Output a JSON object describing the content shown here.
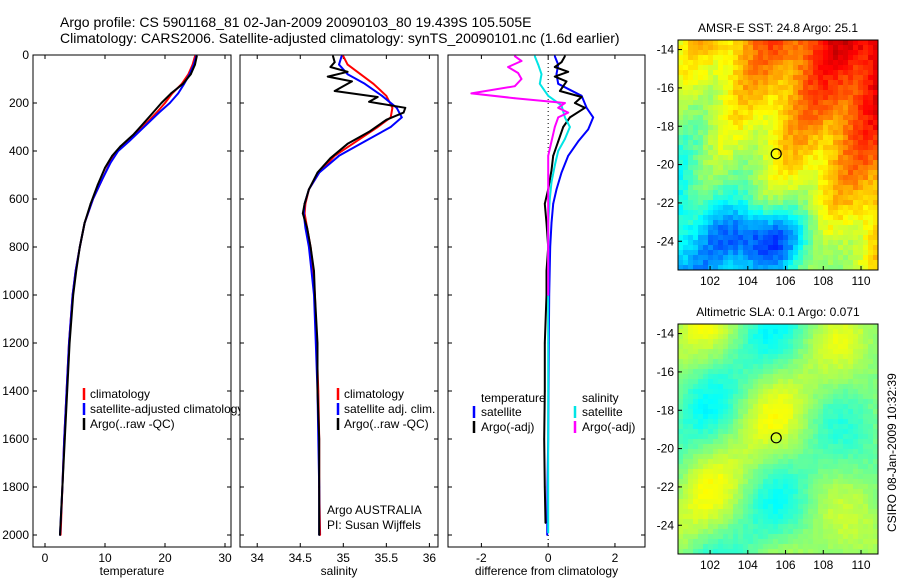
{
  "header": {
    "title_line1": "Argo profile: CS 5901168_81 02-Jan-2009 20090103_80 19.439S 105.505E",
    "title_line2": "Climatology: CARS2006. Satellite-adjusted climatology: synTS_20090101.nc (1.6d earlier)"
  },
  "side_stamp": "CSIRO 08-Jan-2009 10:32:39",
  "chart_data": [
    {
      "type": "line",
      "xlabel": "temperature",
      "xticks": [
        0,
        10,
        20,
        30
      ],
      "xlim": [
        -2,
        31
      ],
      "ylim": [
        2050,
        0
      ],
      "yticks": [
        0,
        200,
        400,
        600,
        800,
        1000,
        1200,
        1400,
        1600,
        1800,
        2000
      ],
      "legend": [
        "climatology",
        "satellite-adjusted climatology",
        "Argo(..raw -QC)"
      ],
      "annotations": [],
      "series": [
        {
          "name": "climatology",
          "color": "#ff0000",
          "points": [
            [
              25.0,
              5
            ],
            [
              24.6,
              40
            ],
            [
              23.9,
              80
            ],
            [
              22.8,
              120
            ],
            [
              21.2,
              160
            ],
            [
              20.0,
              200
            ],
            [
              18.6,
              240
            ],
            [
              16.3,
              300
            ],
            [
              13.8,
              360
            ],
            [
              12.0,
              400
            ],
            [
              10.8,
              450
            ],
            [
              9.5,
              520
            ],
            [
              8.0,
              600
            ],
            [
              6.6,
              700
            ],
            [
              5.8,
              800
            ],
            [
              5.1,
              900
            ],
            [
              4.6,
              1000
            ],
            [
              4.0,
              1200
            ],
            [
              3.6,
              1400
            ],
            [
              3.2,
              1600
            ],
            [
              2.9,
              1800
            ],
            [
              2.6,
              2000
            ]
          ]
        },
        {
          "name": "satellite-adjusted climatology",
          "color": "#0000ff",
          "points": [
            [
              25.2,
              5
            ],
            [
              24.8,
              40
            ],
            [
              24.1,
              80
            ],
            [
              23.2,
              120
            ],
            [
              22.2,
              160
            ],
            [
              20.8,
              200
            ],
            [
              19.0,
              240
            ],
            [
              16.5,
              300
            ],
            [
              14.0,
              360
            ],
            [
              12.2,
              400
            ],
            [
              10.9,
              450
            ],
            [
              9.5,
              520
            ],
            [
              8.0,
              600
            ],
            [
              6.6,
              700
            ],
            [
              5.8,
              800
            ],
            [
              5.1,
              900
            ],
            [
              4.6,
              1000
            ],
            [
              4.0,
              1200
            ],
            [
              3.6,
              1400
            ],
            [
              3.2,
              1600
            ],
            [
              2.9,
              1800
            ],
            [
              2.5,
              2000
            ]
          ]
        },
        {
          "name": "Argo(..raw -QC)",
          "color": "#000000",
          "points": [
            [
              25.3,
              5
            ],
            [
              25.0,
              40
            ],
            [
              24.3,
              80
            ],
            [
              23.0,
              120
            ],
            [
              21.0,
              160
            ],
            [
              19.4,
              200
            ],
            [
              18.0,
              240
            ],
            [
              16.6,
              280
            ],
            [
              14.8,
              330
            ],
            [
              12.6,
              380
            ],
            [
              11.2,
              420
            ],
            [
              10.0,
              470
            ],
            [
              8.8,
              540
            ],
            [
              7.6,
              620
            ],
            [
              6.6,
              700
            ],
            [
              5.8,
              800
            ],
            [
              5.2,
              900
            ],
            [
              4.7,
              1000
            ],
            [
              4.1,
              1200
            ],
            [
              3.7,
              1400
            ],
            [
              3.3,
              1600
            ],
            [
              2.9,
              1800
            ],
            [
              2.5,
              2000
            ]
          ]
        }
      ]
    },
    {
      "type": "line",
      "xlabel": "salinity",
      "xticks": [
        34,
        34.5,
        35,
        35.5,
        36
      ],
      "xlim": [
        33.8,
        36.1
      ],
      "ylim": [
        2050,
        0
      ],
      "yticks": [
        0,
        200,
        400,
        600,
        800,
        1000,
        1200,
        1400,
        1600,
        1800,
        2000
      ],
      "legend": [
        "climatology",
        "satellite adj. clim.",
        "Argo(..raw -QC)"
      ],
      "annotations": [
        "Argo AUSTRALIA",
        "PI: Susan Wijffels"
      ],
      "series": [
        {
          "name": "climatology",
          "color": "#ff0000",
          "points": [
            [
              35.0,
              5
            ],
            [
              35.05,
              40
            ],
            [
              35.2,
              80
            ],
            [
              35.35,
              120
            ],
            [
              35.5,
              170
            ],
            [
              35.57,
              220
            ],
            [
              35.55,
              260
            ],
            [
              35.4,
              300
            ],
            [
              35.15,
              360
            ],
            [
              34.9,
              420
            ],
            [
              34.72,
              490
            ],
            [
              34.6,
              560
            ],
            [
              34.56,
              620
            ],
            [
              34.55,
              660
            ],
            [
              34.58,
              720
            ],
            [
              34.62,
              800
            ],
            [
              34.65,
              900
            ],
            [
              34.67,
              1000
            ],
            [
              34.69,
              1200
            ],
            [
              34.71,
              1400
            ],
            [
              34.72,
              1600
            ],
            [
              34.72,
              1800
            ],
            [
              34.73,
              2000
            ]
          ]
        },
        {
          "name": "satellite adj. clim.",
          "color": "#0000ff",
          "points": [
            [
              34.98,
              5
            ],
            [
              34.95,
              40
            ],
            [
              35.05,
              80
            ],
            [
              35.25,
              120
            ],
            [
              35.45,
              170
            ],
            [
              35.62,
              220
            ],
            [
              35.68,
              260
            ],
            [
              35.55,
              300
            ],
            [
              35.25,
              360
            ],
            [
              34.95,
              420
            ],
            [
              34.72,
              490
            ],
            [
              34.6,
              560
            ],
            [
              34.55,
              620
            ],
            [
              34.54,
              660
            ],
            [
              34.56,
              720
            ],
            [
              34.6,
              800
            ],
            [
              34.63,
              900
            ],
            [
              34.66,
              1000
            ],
            [
              34.68,
              1200
            ],
            [
              34.7,
              1400
            ],
            [
              34.71,
              1600
            ],
            [
              34.72,
              1800
            ],
            [
              34.72,
              2000
            ]
          ]
        },
        {
          "name": "Argo(..raw -QC)",
          "color": "#000000",
          "points": [
            [
              34.88,
              5
            ],
            [
              34.9,
              30
            ],
            [
              34.85,
              50
            ],
            [
              35.05,
              70
            ],
            [
              34.82,
              90
            ],
            [
              35.1,
              110
            ],
            [
              34.9,
              150
            ],
            [
              35.4,
              175
            ],
            [
              35.3,
              195
            ],
            [
              35.72,
              220
            ],
            [
              35.7,
              240
            ],
            [
              35.5,
              270
            ],
            [
              35.3,
              320
            ],
            [
              35.05,
              370
            ],
            [
              34.85,
              430
            ],
            [
              34.7,
              490
            ],
            [
              34.6,
              560
            ],
            [
              34.55,
              620
            ],
            [
              34.53,
              660
            ],
            [
              34.58,
              720
            ],
            [
              34.62,
              800
            ],
            [
              34.66,
              900
            ],
            [
              34.67,
              1000
            ],
            [
              34.7,
              1200
            ],
            [
              34.7,
              1400
            ],
            [
              34.72,
              1600
            ],
            [
              34.72,
              1800
            ],
            [
              34.72,
              2000
            ]
          ]
        }
      ]
    },
    {
      "type": "line",
      "xlabel": "difference from climatology",
      "xticks": [
        -2,
        0,
        2
      ],
      "xlim": [
        -3.0,
        2.9
      ],
      "ylim": [
        2050,
        0
      ],
      "yticks": [
        0,
        200,
        400,
        600,
        800,
        1000,
        1200,
        1400,
        1600,
        1800,
        2000
      ],
      "legend": [
        "temperature",
        "satellite",
        "Argo(-adj)",
        "salinity",
        "satellite",
        "Argo(-adj)"
      ],
      "annotations": [],
      "series": [
        {
          "name": "satellite",
          "color": "#0000ff",
          "points": [
            [
              0.2,
              5
            ],
            [
              0.3,
              40
            ],
            [
              0.25,
              80
            ],
            [
              0.3,
              120
            ],
            [
              1.0,
              170
            ],
            [
              1.15,
              220
            ],
            [
              1.35,
              260
            ],
            [
              1.2,
              310
            ],
            [
              0.9,
              360
            ],
            [
              0.6,
              420
            ],
            [
              0.4,
              490
            ],
            [
              0.25,
              560
            ],
            [
              0.15,
              620
            ],
            [
              0.1,
              700
            ],
            [
              0.06,
              800
            ],
            [
              0.03,
              1000
            ],
            [
              0.02,
              1200
            ],
            [
              0.01,
              1400
            ],
            [
              0.0,
              1600
            ],
            [
              -0.02,
              1800
            ],
            [
              -0.03,
              2000
            ]
          ]
        },
        {
          "name": "Argo(-adj)",
          "color": "#000000",
          "points": [
            [
              0.5,
              5
            ],
            [
              0.4,
              30
            ],
            [
              0.2,
              50
            ],
            [
              0.6,
              70
            ],
            [
              0.2,
              90
            ],
            [
              0.55,
              110
            ],
            [
              0.35,
              150
            ],
            [
              1.0,
              175
            ],
            [
              0.8,
              200
            ],
            [
              1.1,
              220
            ],
            [
              0.65,
              260
            ],
            [
              0.45,
              300
            ],
            [
              0.3,
              360
            ],
            [
              0.15,
              420
            ],
            [
              0.1,
              480
            ],
            [
              0.0,
              560
            ],
            [
              -0.1,
              620
            ],
            [
              -0.05,
              700
            ],
            [
              0.0,
              800
            ],
            [
              -0.05,
              900
            ],
            [
              -0.05,
              1000
            ],
            [
              -0.1,
              1200
            ],
            [
              -0.1,
              1400
            ],
            [
              -0.12,
              1600
            ],
            [
              -0.1,
              1800
            ],
            [
              -0.08,
              1950
            ]
          ]
        },
        {
          "name": "satellite",
          "color": "#00e5e5",
          "points": [
            [
              -0.4,
              5
            ],
            [
              -0.3,
              40
            ],
            [
              -0.2,
              80
            ],
            [
              -0.25,
              120
            ],
            [
              0.0,
              170
            ],
            [
              0.4,
              210
            ],
            [
              0.5,
              260
            ],
            [
              0.65,
              300
            ],
            [
              0.5,
              350
            ],
            [
              0.3,
              400
            ],
            [
              0.2,
              460
            ],
            [
              0.1,
              530
            ],
            [
              0.05,
              600
            ],
            [
              0.0,
              700
            ],
            [
              0.0,
              800
            ],
            [
              0.0,
              900
            ],
            [
              0.0,
              1000
            ],
            [
              0.0,
              1200
            ],
            [
              0.0,
              1400
            ],
            [
              0.0,
              1600
            ],
            [
              0.0,
              1800
            ],
            [
              0.0,
              1990
            ]
          ]
        },
        {
          "name": "Argo(-adj)",
          "color": "#ff00ff",
          "points": [
            [
              -1.0,
              5
            ],
            [
              -0.8,
              25
            ],
            [
              -1.2,
              50
            ],
            [
              -0.9,
              75
            ],
            [
              -0.8,
              100
            ],
            [
              -1.0,
              130
            ],
            [
              -2.3,
              160
            ],
            [
              -1.0,
              180
            ],
            [
              0.5,
              200
            ],
            [
              0.3,
              220
            ],
            [
              0.6,
              240
            ],
            [
              0.3,
              260
            ],
            [
              0.2,
              300
            ],
            [
              0.1,
              360
            ],
            [
              0.0,
              420
            ],
            [
              0.0,
              500
            ],
            [
              0.0,
              600
            ],
            [
              0.0,
              700
            ],
            [
              0.0,
              800
            ],
            [
              0.0,
              900
            ],
            [
              0.0,
              1000
            ]
          ]
        }
      ]
    },
    {
      "type": "heatmap",
      "title": "AMSR-E SST: 24.8 Argo: 25.1",
      "xlim": [
        100.3,
        110.9
      ],
      "ylim": [
        -25.5,
        -13.5
      ],
      "xticks": [
        102,
        104,
        106,
        108,
        110
      ],
      "yticks": [
        -14,
        -16,
        -18,
        -20,
        -22,
        -24
      ],
      "marker": [
        105.505,
        -19.439
      ]
    },
    {
      "type": "heatmap",
      "title": "Altimetric SLA: 0.1 Argo: 0.071",
      "xlim": [
        100.3,
        110.9
      ],
      "ylim": [
        -25.5,
        -13.5
      ],
      "xticks": [
        102,
        104,
        106,
        108,
        110
      ],
      "yticks": [
        -14,
        -16,
        -18,
        -20,
        -22,
        -24
      ],
      "marker": [
        105.505,
        -19.439
      ]
    }
  ]
}
